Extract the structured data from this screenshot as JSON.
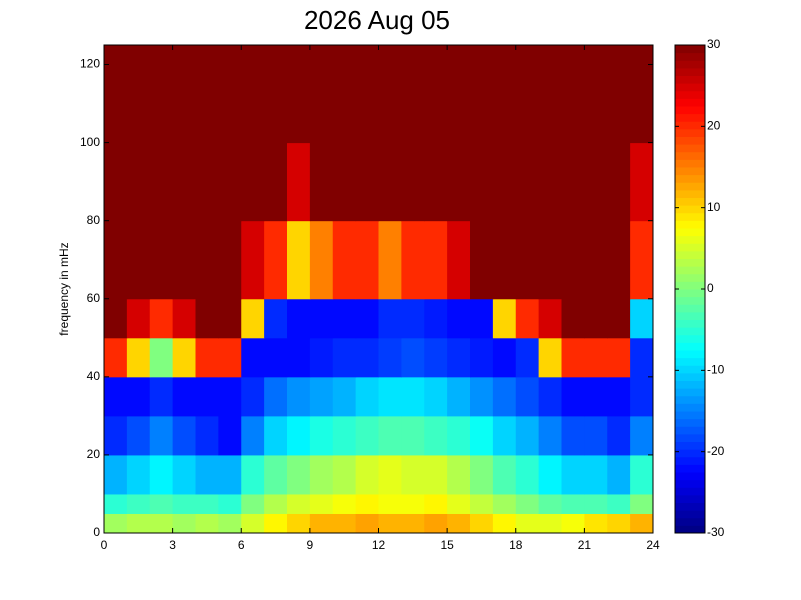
{
  "chart_data": {
    "type": "heatmap",
    "title": "2026 Aug 05",
    "y_label": "frequency in mHz",
    "colormap": "jet",
    "x_bins": [
      0,
      1,
      2,
      3,
      4,
      5,
      6,
      7,
      8,
      9,
      10,
      11,
      12,
      13,
      14,
      15,
      16,
      17,
      18,
      19,
      20,
      21,
      22,
      23,
      24
    ],
    "y_bins": [
      0,
      5,
      10,
      20,
      30,
      40,
      50,
      60,
      80,
      100,
      125
    ],
    "z": [
      [
        2,
        3,
        3,
        2,
        3,
        2,
        5,
        8,
        10,
        12,
        12,
        13,
        12,
        12,
        13,
        12,
        10,
        8,
        6,
        6,
        7,
        9,
        10,
        12
      ],
      [
        -5,
        -4,
        -3,
        -4,
        -4,
        -5,
        0,
        3,
        5,
        6,
        7,
        8,
        7,
        7,
        8,
        6,
        4,
        2,
        0,
        -2,
        -3,
        -3,
        -4,
        0
      ],
      [
        -12,
        -10,
        -8,
        -10,
        -12,
        -12,
        -5,
        -2,
        0,
        2,
        3,
        5,
        6,
        5,
        5,
        3,
        0,
        -3,
        -5,
        -8,
        -10,
        -10,
        -12,
        -5
      ],
      [
        -20,
        -18,
        -15,
        -18,
        -20,
        -22,
        -15,
        -10,
        -8,
        -6,
        -5,
        -4,
        -3,
        -3,
        -4,
        -5,
        -7,
        -10,
        -12,
        -15,
        -18,
        -18,
        -20,
        -15
      ],
      [
        -22,
        -22,
        -20,
        -22,
        -22,
        -22,
        -20,
        -16,
        -14,
        -13,
        -12,
        -10,
        -9,
        -9,
        -10,
        -12,
        -14,
        -16,
        -18,
        -20,
        -22,
        -22,
        -22,
        -20
      ],
      [
        20,
        10,
        0,
        10,
        20,
        20,
        -22,
        -22,
        -22,
        -21,
        -20,
        -20,
        -19,
        -18,
        -19,
        -20,
        -21,
        -22,
        -20,
        10,
        20,
        20,
        20,
        -20
      ],
      [
        30,
        25,
        20,
        25,
        30,
        30,
        10,
        -20,
        -22,
        -22,
        -22,
        -22,
        -20,
        -20,
        -21,
        -22,
        -22,
        10,
        20,
        25,
        30,
        30,
        30,
        -10
      ],
      [
        30,
        30,
        30,
        30,
        30,
        30,
        25,
        20,
        10,
        15,
        20,
        20,
        15,
        20,
        20,
        25,
        30,
        30,
        30,
        30,
        30,
        30,
        30,
        20
      ],
      [
        30,
        30,
        30,
        30,
        30,
        30,
        30,
        30,
        25,
        30,
        30,
        30,
        30,
        30,
        30,
        30,
        30,
        30,
        30,
        30,
        30,
        30,
        30,
        25
      ],
      [
        30,
        30,
        30,
        30,
        30,
        30,
        30,
        30,
        30,
        30,
        30,
        30,
        30,
        30,
        30,
        30,
        30,
        30,
        30,
        30,
        30,
        30,
        30,
        30
      ]
    ],
    "xlim": [
      0,
      24
    ],
    "xticks": [
      0,
      3,
      6,
      9,
      12,
      15,
      18,
      21,
      24
    ],
    "ylim": [
      0,
      125
    ],
    "yticks": [
      0,
      20,
      40,
      60,
      80,
      100,
      120
    ],
    "clim": [
      -30,
      30
    ],
    "cticks": [
      -30,
      -20,
      -10,
      0,
      10,
      20,
      30
    ]
  }
}
